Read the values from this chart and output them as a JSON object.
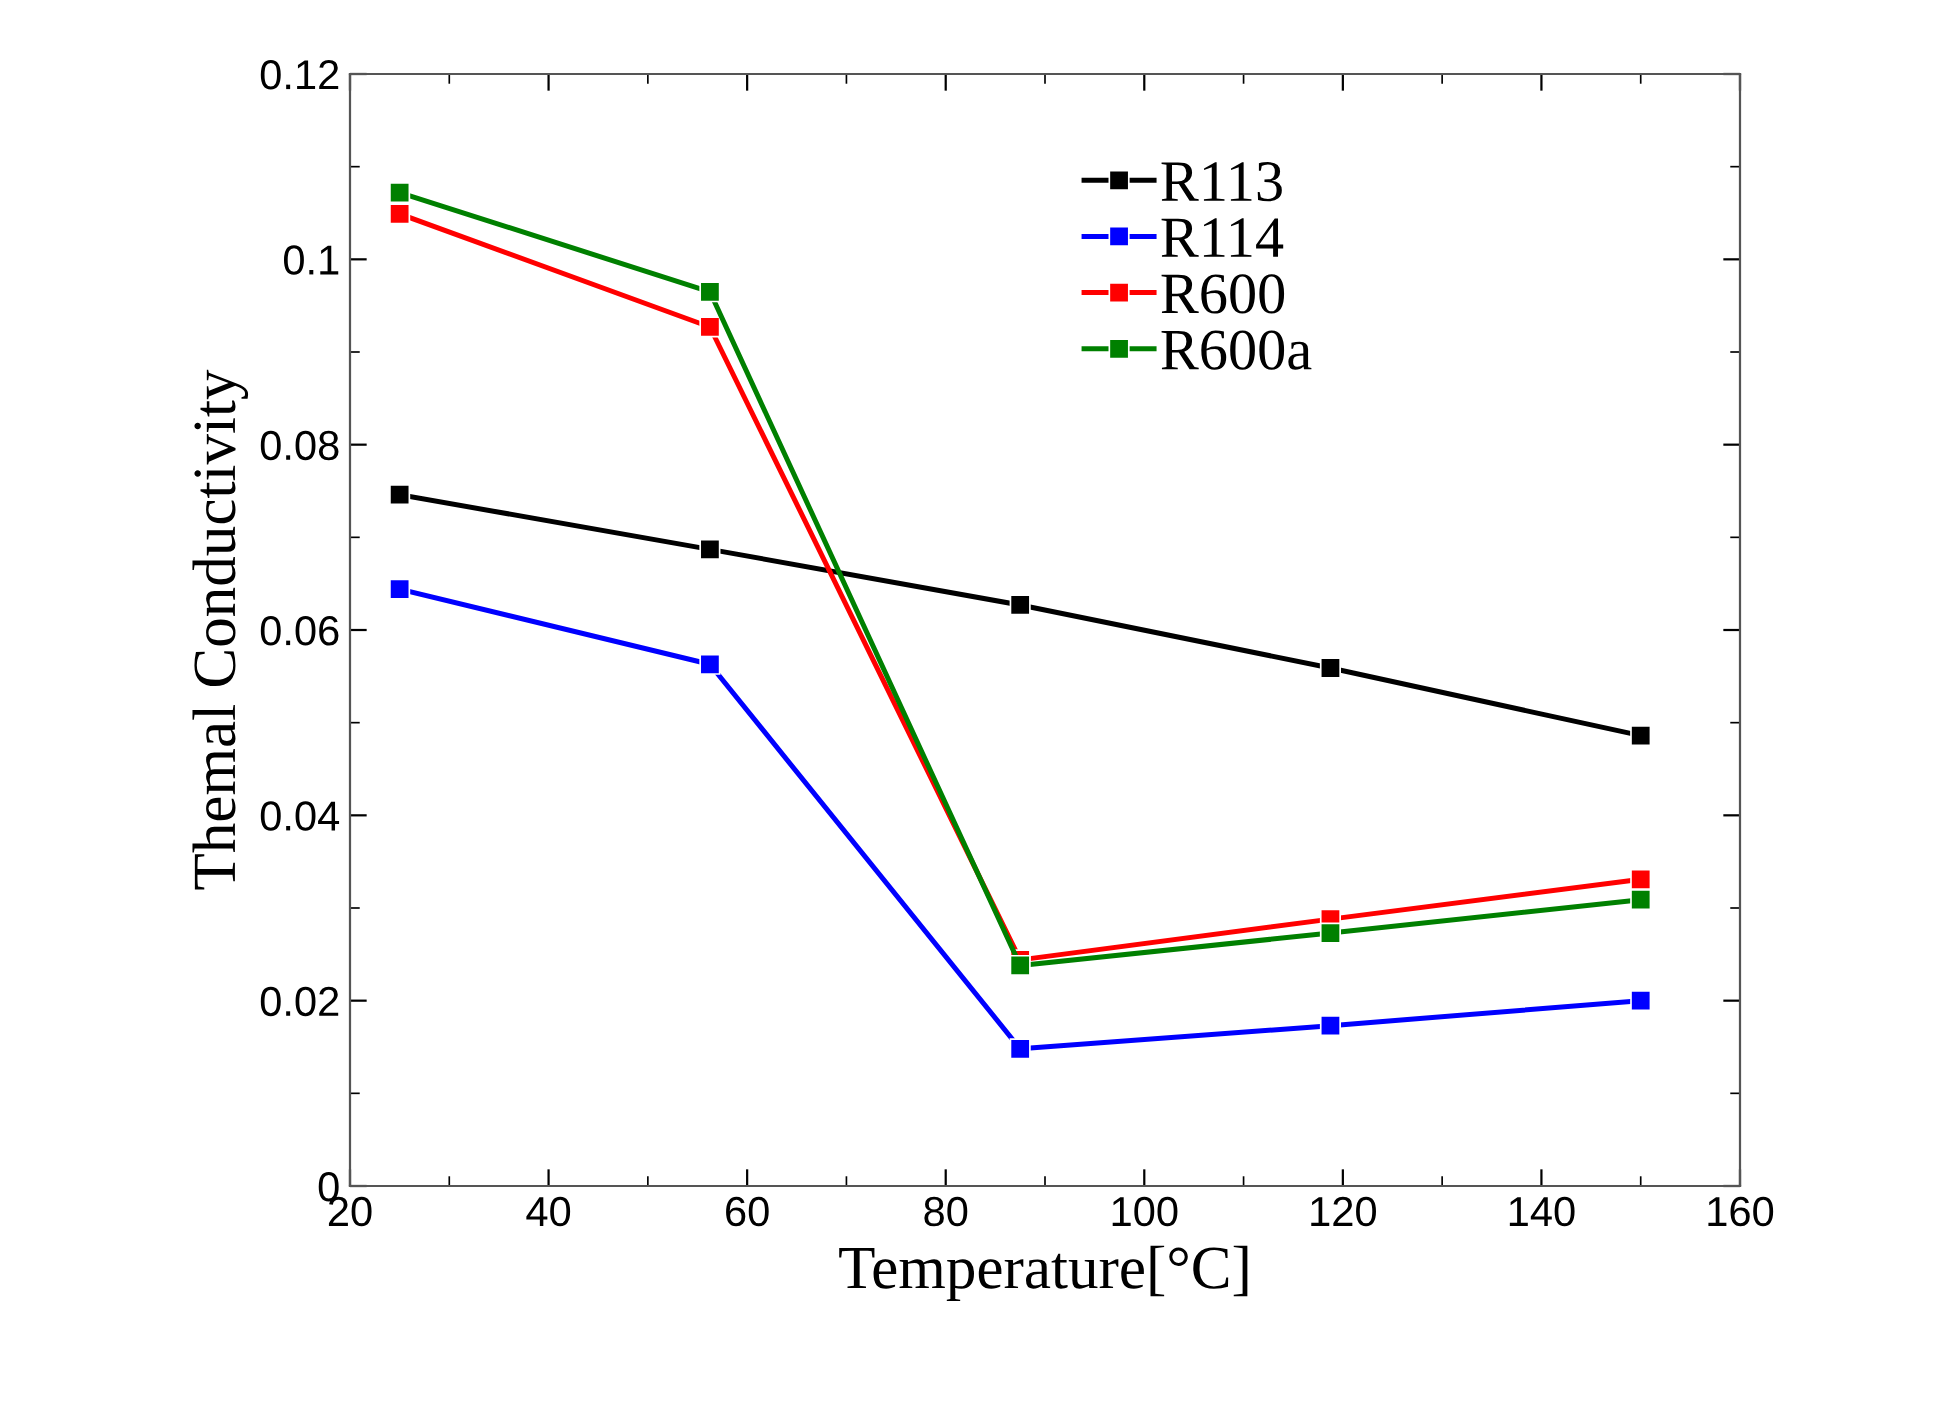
{
  "chart_data": {
    "type": "line",
    "xlabel": "Temperature[°C]",
    "ylabel": "Themal Conductivity",
    "x": [
      25,
      56.25,
      87.5,
      118.75,
      150
    ],
    "series": [
      {
        "name": "R113",
        "color": "#000000",
        "values": [
          0.0746,
          0.0687,
          0.0627,
          0.0559,
          0.0486
        ]
      },
      {
        "name": "R114",
        "color": "#0000ff",
        "values": [
          0.0644,
          0.0563,
          0.0148,
          0.0173,
          0.02
        ]
      },
      {
        "name": "R600",
        "color": "#ff0000",
        "values": [
          0.1049,
          0.0927,
          0.0244,
          0.0288,
          0.0331
        ]
      },
      {
        "name": "R600a",
        "color": "#008000",
        "values": [
          0.1072,
          0.0965,
          0.0238,
          0.0273,
          0.0309
        ]
      }
    ],
    "xlim": [
      20,
      160
    ],
    "xticks": [
      20,
      40,
      60,
      80,
      100,
      120,
      140,
      160
    ],
    "ylim": [
      0,
      0.12
    ],
    "yticks": [
      0,
      0.02,
      0.04,
      0.06,
      0.08,
      {
        "value": 0.1,
        "label": "0.1"
      },
      0.12
    ],
    "grid": false,
    "legend": "top right",
    "marker": "square",
    "line_style": "solid"
  }
}
